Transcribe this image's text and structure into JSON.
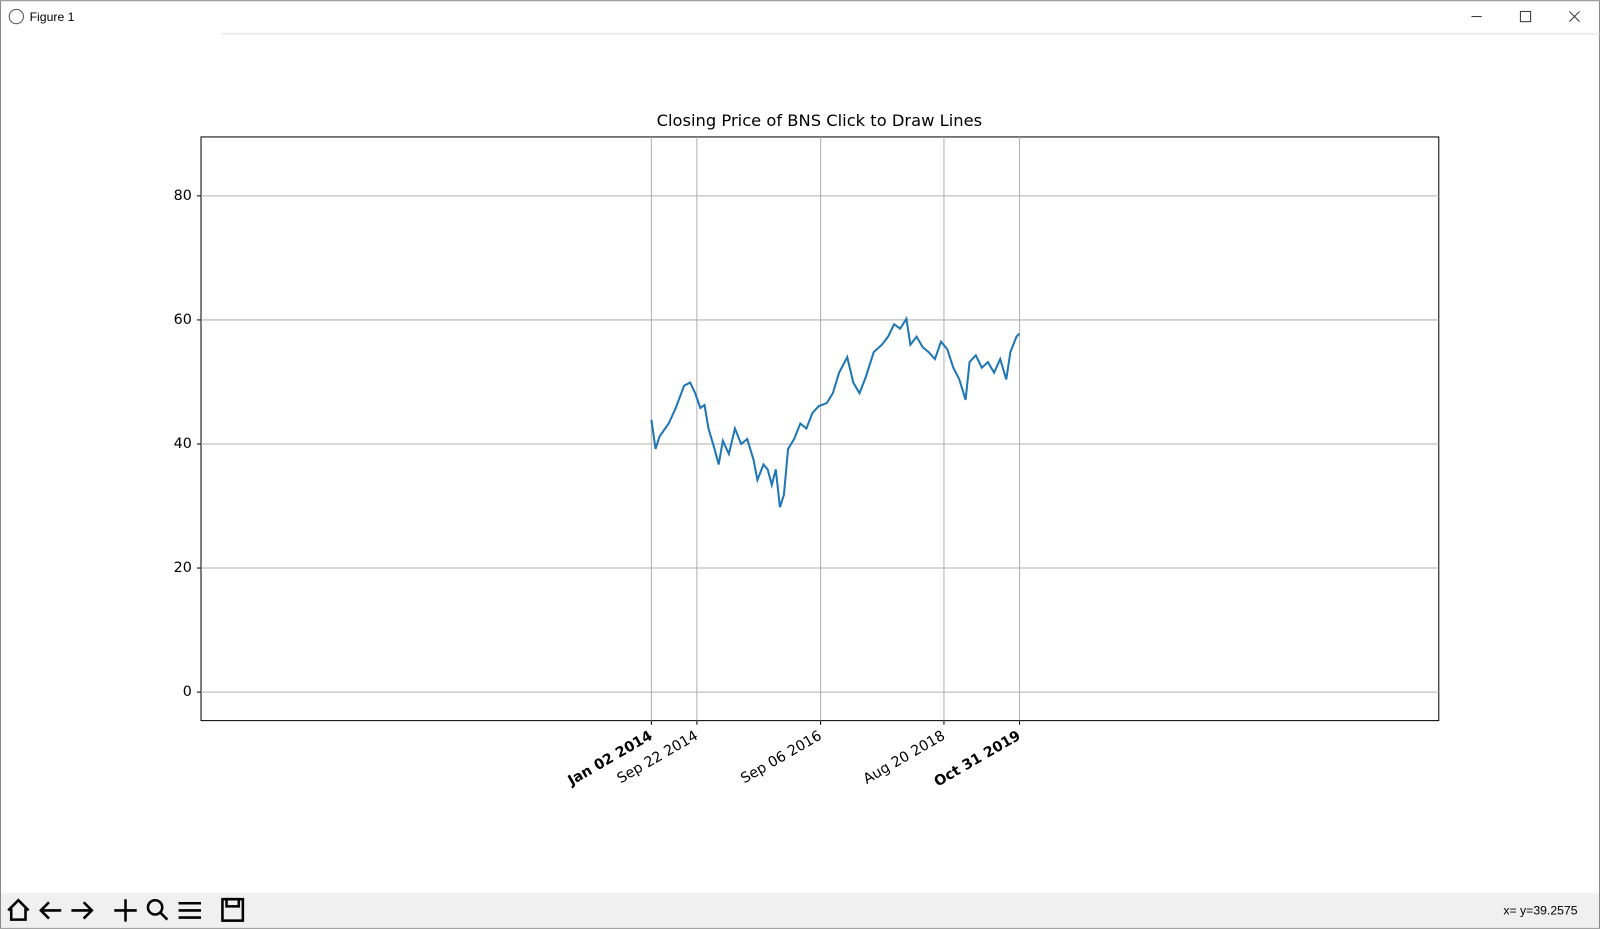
{
  "window": {
    "title": "Figure 1",
    "status": "x= y=39.2575"
  },
  "chart_data": {
    "type": "line",
    "title": "Closing Price of BNS Click to Draw Lines",
    "x": [
      "2014-01-02",
      "2014-01-26",
      "2014-02-18",
      "2014-04-12",
      "2014-05-23",
      "2014-07-10",
      "2014-08-14",
      "2014-09-12",
      "2014-10-12",
      "2014-11-05",
      "2014-11-28",
      "2015-01-02",
      "2015-01-26",
      "2015-02-19",
      "2015-03-26",
      "2015-04-30",
      "2015-06-05",
      "2015-07-10",
      "2015-08-15",
      "2015-09-07",
      "2015-10-12",
      "2015-11-05",
      "2015-11-29",
      "2015-12-22",
      "2016-01-15",
      "2016-02-07",
      "2016-03-02",
      "2016-04-06",
      "2016-05-12",
      "2016-06-16",
      "2016-07-21",
      "2016-08-26",
      "2016-10-12",
      "2016-11-16",
      "2016-12-22",
      "2017-02-07",
      "2017-03-14",
      "2017-04-19",
      "2017-05-24",
      "2017-07-10",
      "2017-08-26",
      "2017-10-01",
      "2017-11-05",
      "2017-12-10",
      "2018-01-15",
      "2018-02-07",
      "2018-03-15",
      "2018-04-19",
      "2018-05-24",
      "2018-06-29",
      "2018-08-03",
      "2018-09-08",
      "2018-10-13",
      "2018-11-17",
      "2018-12-23",
      "2019-01-15",
      "2019-02-20",
      "2019-03-27",
      "2019-05-01",
      "2019-06-06",
      "2019-07-11",
      "2019-08-15",
      "2019-09-08",
      "2019-10-13",
      "2019-10-31"
    ],
    "series": [
      {
        "name": "BNS",
        "color": "#1f77b4",
        "values": [
          43.9,
          39.2,
          41.2,
          43.3,
          45.8,
          49.4,
          49.9,
          48.2,
          45.8,
          46.3,
          42.5,
          39.2,
          36.7,
          40.5,
          38.4,
          42.5,
          40.0,
          40.8,
          37.5,
          34.2,
          36.7,
          35.9,
          33.4,
          35.9,
          29.8,
          31.8,
          39.2,
          40.8,
          43.3,
          42.5,
          45.0,
          46.1,
          46.6,
          48.2,
          51.5,
          54.0,
          49.9,
          48.2,
          50.7,
          54.8,
          56.0,
          57.3,
          59.3,
          58.6,
          60.2,
          56.0,
          57.3,
          55.6,
          54.8,
          53.7,
          56.5,
          55.3,
          52.3,
          50.4,
          47.1,
          53.2,
          54.3,
          52.3,
          53.2,
          51.5,
          53.7,
          50.4,
          54.8,
          57.3,
          57.8
        ]
      }
    ],
    "xlim": [
      "2006-11-17",
      "2026-06-19"
    ],
    "xticks": [
      {
        "value": "2014-01-02",
        "label": "Jan 02 2014"
      },
      {
        "value": "2014-09-22",
        "label": "Sep 22 2014"
      },
      {
        "value": "2016-09-06",
        "label": "Sep 06 2016"
      },
      {
        "value": "2018-08-20",
        "label": "Aug 20 2018"
      },
      {
        "value": "2019-10-31",
        "label": "Oct 31 2019"
      }
    ],
    "ylim": [
      -4.6,
      89.5
    ],
    "yticks": [
      0,
      20,
      40,
      60,
      80
    ],
    "grid": true
  }
}
